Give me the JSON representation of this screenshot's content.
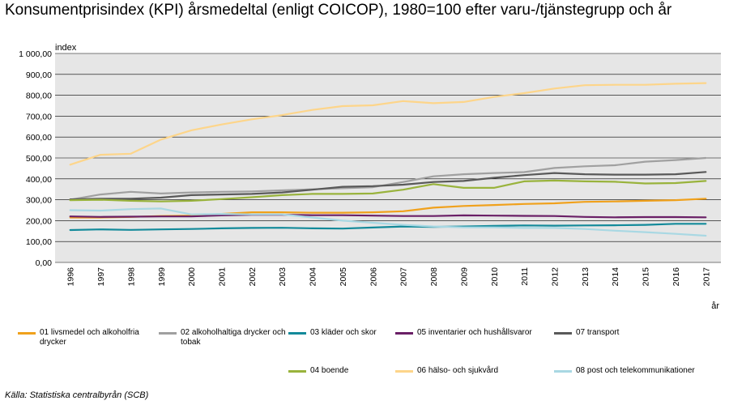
{
  "title": "Konsumentprisindex (KPI) årsmedeltal (enligt COICOP), 1980=100 efter varu-/tjänstegrupp och år",
  "source": "Källa: Statistiska centralbyrån (SCB)",
  "chart_data": {
    "type": "line",
    "ylabel": "index",
    "xlabel": "år",
    "ylim": [
      0,
      1000
    ],
    "yticks": [
      "0,00",
      "100,00",
      "200,00",
      "300,00",
      "400,00",
      "500,00",
      "600,00",
      "700,00",
      "800,00",
      "900,00",
      "1 000,00"
    ],
    "categories": [
      "1996",
      "1997",
      "1998",
      "1999",
      "2000",
      "2001",
      "2002",
      "2003",
      "2004",
      "2005",
      "2006",
      "2007",
      "2008",
      "2009",
      "2010",
      "2011",
      "2012",
      "2013",
      "2014",
      "2015",
      "2016",
      "2017"
    ],
    "series": [
      {
        "name": "01 livsmedel och alkoholfria drycker",
        "color": "#f0a11c",
        "values": [
          215,
          215,
          218,
          222,
          224,
          232,
          240,
          240,
          238,
          238,
          240,
          245,
          262,
          270,
          275,
          280,
          283,
          290,
          292,
          295,
          298,
          305
        ]
      },
      {
        "name": "02 alkoholhaltiga drycker och tobak",
        "color": "#a0a0a0",
        "values": [
          300,
          325,
          338,
          330,
          335,
          338,
          340,
          345,
          350,
          355,
          360,
          385,
          412,
          422,
          428,
          432,
          452,
          460,
          465,
          482,
          490,
          500
        ]
      },
      {
        "name": "03 kläder och skor",
        "color": "#138a9a",
        "values": [
          155,
          158,
          156,
          158,
          160,
          163,
          165,
          166,
          163,
          162,
          167,
          172,
          170,
          172,
          175,
          177,
          176,
          177,
          178,
          180,
          185,
          185
        ]
      },
      {
        "name": "05 inventarier och hushållsvaror",
        "color": "#6a1f66",
        "values": [
          220,
          218,
          219,
          220,
          220,
          225,
          228,
          228,
          226,
          226,
          224,
          222,
          222,
          225,
          224,
          223,
          222,
          218,
          216,
          217,
          217,
          216
        ]
      },
      {
        "name": "07 transport",
        "color": "#595959",
        "values": [
          302,
          305,
          305,
          310,
          322,
          325,
          328,
          335,
          348,
          362,
          365,
          372,
          385,
          390,
          405,
          418,
          428,
          422,
          420,
          420,
          422,
          433
        ]
      },
      {
        "name": "04 boende",
        "color": "#99b33c",
        "values": [
          298,
          300,
          295,
          292,
          295,
          303,
          312,
          322,
          328,
          328,
          330,
          348,
          375,
          357,
          357,
          388,
          392,
          388,
          386,
          378,
          380,
          390
        ]
      },
      {
        "name": "06 hälso- och sjukvård",
        "color": "#fdd58a",
        "values": [
          468,
          515,
          520,
          588,
          632,
          660,
          685,
          705,
          730,
          748,
          752,
          772,
          762,
          768,
          792,
          810,
          832,
          848,
          850,
          850,
          855,
          858
        ]
      },
      {
        "name": "08 post och telekommunikationer",
        "color": "#a9d8e3",
        "values": [
          250,
          248,
          255,
          258,
          230,
          232,
          230,
          230,
          215,
          200,
          190,
          180,
          172,
          168,
          168,
          165,
          165,
          160,
          152,
          145,
          137,
          128
        ]
      }
    ]
  }
}
